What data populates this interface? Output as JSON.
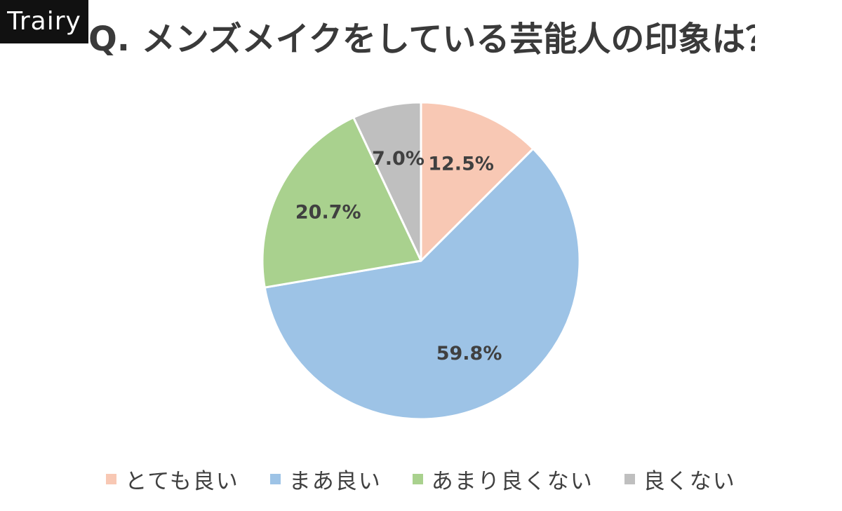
{
  "logo": {
    "text": "Trairy"
  },
  "chart_data": {
    "type": "pie",
    "title": "Q. メンズメイクをしている芸能人の印象は？",
    "slices": [
      {
        "label": "とても良い",
        "value": 12.5,
        "value_label": "12.5%",
        "color": "#f8c8b4"
      },
      {
        "label": "まあ良い",
        "value": 59.8,
        "value_label": "59.8%",
        "color": "#9dc3e6"
      },
      {
        "label": "あまり良くない",
        "value": 20.7,
        "value_label": "20.7%",
        "color": "#a9d18e"
      },
      {
        "label": "良くない",
        "value": 7.0,
        "value_label": "7.0%",
        "color": "#bfbfbf"
      }
    ],
    "start": "12 o'clock",
    "direction": "clockwise",
    "legend_position": "bottom",
    "data_label_color": "#404040"
  }
}
